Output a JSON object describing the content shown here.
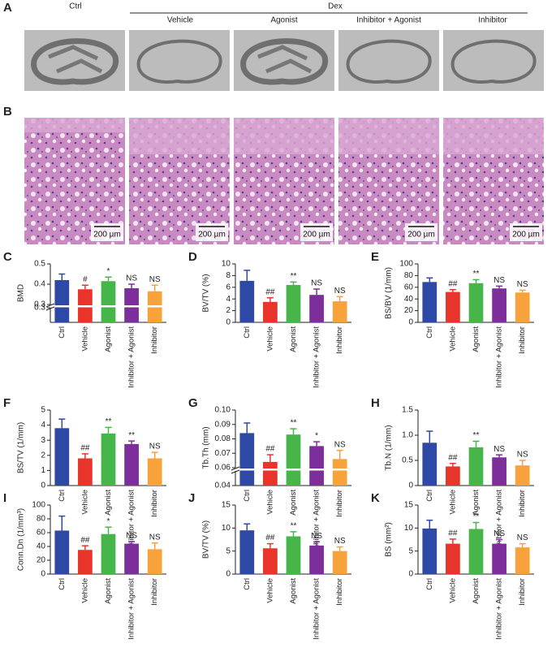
{
  "panel_a": {
    "label": "A",
    "ctrl": "Ctrl",
    "dex": "Dex",
    "columns": [
      "Vehicle",
      "Agonist",
      "Inhibitor + Agonist",
      "Inhibitor"
    ]
  },
  "panel_b": {
    "label": "B",
    "scale_bars": [
      "200 µm",
      "200 µm",
      "200 µm",
      "200 µm",
      "200 µm"
    ]
  },
  "chart_data": [
    {
      "type": "bar",
      "panel": "C",
      "ylabel": "BMD",
      "categories": [
        "Ctrl",
        "Vehicle",
        "Agonist",
        "Inhibitor + Agonist",
        "Inhibitor"
      ],
      "values": [
        0.42,
        0.375,
        0.415,
        0.38,
        0.365
      ],
      "errors": [
        0.03,
        0.02,
        0.02,
        0.02,
        0.03
      ],
      "annotations": [
        null,
        "#",
        "*",
        "NS",
        "NS"
      ],
      "colors": [
        "#2e48a6",
        "#e8342a",
        "#46b64a",
        "#7c2f9b",
        "#f7a23b"
      ],
      "ylim": [
        0.3,
        0.5
      ],
      "yticks": [
        0.3,
        0.4,
        0.5
      ],
      "lower_ylim": [
        0,
        0.3
      ],
      "lower_yticks": [
        0.3
      ]
    },
    {
      "type": "bar",
      "panel": "D",
      "ylabel": "BV/TV (%)",
      "categories": [
        "Ctrl",
        "Vehicle",
        "Agonist",
        "Inhibitor + Agonist",
        "Inhibitor"
      ],
      "values": [
        7.1,
        3.5,
        6.4,
        4.7,
        3.6
      ],
      "errors": [
        1.8,
        0.7,
        0.5,
        1.0,
        0.8
      ],
      "annotations": [
        null,
        "##",
        "**",
        "NS",
        "NS"
      ],
      "colors": [
        "#2e48a6",
        "#e8342a",
        "#46b64a",
        "#7c2f9b",
        "#f7a23b"
      ],
      "ylim": [
        0,
        10
      ],
      "yticks": [
        0,
        2,
        4,
        6,
        8,
        10
      ]
    },
    {
      "type": "bar",
      "panel": "E",
      "ylabel": "BS/BV (1/mm)",
      "categories": [
        "Ctrl",
        "Vehicle",
        "Agonist",
        "Inhibitor + Agonist",
        "Inhibitor"
      ],
      "values": [
        69,
        52,
        67,
        58,
        51
      ],
      "errors": [
        7,
        4,
        6,
        4,
        4
      ],
      "annotations": [
        null,
        "##",
        "**",
        "NS",
        "NS"
      ],
      "colors": [
        "#2e48a6",
        "#e8342a",
        "#46b64a",
        "#7c2f9b",
        "#f7a23b"
      ],
      "ylim": [
        0,
        100
      ],
      "yticks": [
        0,
        20,
        40,
        60,
        80,
        100
      ]
    },
    {
      "type": "bar",
      "panel": "F",
      "ylabel": "BS/TV (1/mm)",
      "categories": [
        "Ctrl",
        "Vehicle",
        "Agonist",
        "Inhibitor + Agonist",
        "Inhibitor"
      ],
      "values": [
        3.8,
        1.8,
        3.45,
        2.75,
        1.8
      ],
      "errors": [
        0.6,
        0.3,
        0.4,
        0.2,
        0.4
      ],
      "annotations": [
        null,
        "##",
        "**",
        "**",
        "NS"
      ],
      "colors": [
        "#2e48a6",
        "#e8342a",
        "#46b64a",
        "#7c2f9b",
        "#f7a23b"
      ],
      "ylim": [
        0,
        5
      ],
      "yticks": [
        0,
        1,
        2,
        3,
        4,
        5
      ]
    },
    {
      "type": "bar",
      "panel": "G",
      "ylabel": "Tb.Th (mm)",
      "categories": [
        "Ctrl",
        "Vehicle",
        "Agonist",
        "Inhibitor + Agonist",
        "Inhibitor"
      ],
      "values": [
        0.084,
        0.064,
        0.083,
        0.075,
        0.066
      ],
      "errors": [
        0.007,
        0.005,
        0.004,
        0.003,
        0.006
      ],
      "annotations": [
        null,
        "##",
        "**",
        "*",
        "NS"
      ],
      "colors": [
        "#2e48a6",
        "#e8342a",
        "#46b64a",
        "#7c2f9b",
        "#f7a23b"
      ],
      "ylim": [
        0.06,
        0.1
      ],
      "yticks": [
        0.06,
        0.07,
        0.08,
        0.09,
        {
          "value": 0.1,
          "label": "0.10"
        }
      ],
      "lower_ylim": [
        0.04,
        0.06
      ],
      "lower_yticks": [
        0.04
      ]
    },
    {
      "type": "bar",
      "panel": "H",
      "ylabel": "Tb.N (1/mm)",
      "categories": [
        "Ctrl",
        "Vehicle",
        "Agonist",
        "Inhibitor + Agonist",
        "Inhibitor"
      ],
      "values": [
        0.85,
        0.38,
        0.76,
        0.56,
        0.4
      ],
      "errors": [
        0.23,
        0.06,
        0.12,
        0.05,
        0.1
      ],
      "annotations": [
        null,
        "##",
        "**",
        "NS",
        "NS"
      ],
      "colors": [
        "#2e48a6",
        "#e8342a",
        "#46b64a",
        "#7c2f9b",
        "#f7a23b"
      ],
      "ylim": [
        0,
        1.5
      ],
      "yticks": [
        0,
        0.5,
        {
          "value": 1,
          "label": "1.0"
        },
        1.5
      ]
    },
    {
      "type": "bar",
      "panel": "I",
      "ylabel": "Conn.Dn (1/mm³)",
      "categories": [
        "Ctrl",
        "Vehicle",
        "Agonist",
        "Inhibitor + Agonist",
        "Inhibitor"
      ],
      "values": [
        63,
        35,
        58,
        44,
        36
      ],
      "errors": [
        21,
        6,
        10,
        3,
        9
      ],
      "annotations": [
        null,
        "##",
        "*",
        "NS",
        "NS"
      ],
      "colors": [
        "#2e48a6",
        "#e8342a",
        "#46b64a",
        "#7c2f9b",
        "#f7a23b"
      ],
      "ylim": [
        0,
        100
      ],
      "yticks": [
        0,
        20,
        40,
        60,
        80,
        100
      ]
    },
    {
      "type": "bar",
      "panel": "J",
      "ylabel": "BV/TV (%)",
      "categories": [
        "Ctrl",
        "Vehicle",
        "Agonist",
        "Inhibitor + Agonist",
        "Inhibitor"
      ],
      "values": [
        9.5,
        5.6,
        8.2,
        6.2,
        5.0
      ],
      "errors": [
        1.4,
        1.0,
        1.0,
        0.8,
        0.9
      ],
      "annotations": [
        null,
        "##",
        "**",
        "NS",
        "NS"
      ],
      "colors": [
        "#2e48a6",
        "#e8342a",
        "#46b64a",
        "#7c2f9b",
        "#f7a23b"
      ],
      "ylim": [
        0,
        15
      ],
      "yticks": [
        0,
        5,
        10,
        15
      ]
    },
    {
      "type": "bar",
      "panel": "K",
      "ylabel": "BS (mm²)",
      "categories": [
        "Ctrl",
        "Vehicle",
        "Agonist",
        "Inhibitor + Agonist",
        "Inhibitor"
      ],
      "values": [
        9.9,
        6.6,
        9.8,
        6.6,
        5.8
      ],
      "errors": [
        1.8,
        1.0,
        1.4,
        0.9,
        0.8
      ],
      "annotations": [
        null,
        "##",
        "**",
        "NS",
        "NS"
      ],
      "colors": [
        "#2e48a6",
        "#e8342a",
        "#46b64a",
        "#7c2f9b",
        "#f7a23b"
      ],
      "ylim": [
        0,
        15
      ],
      "yticks": [
        0,
        5,
        10,
        15
      ]
    }
  ]
}
